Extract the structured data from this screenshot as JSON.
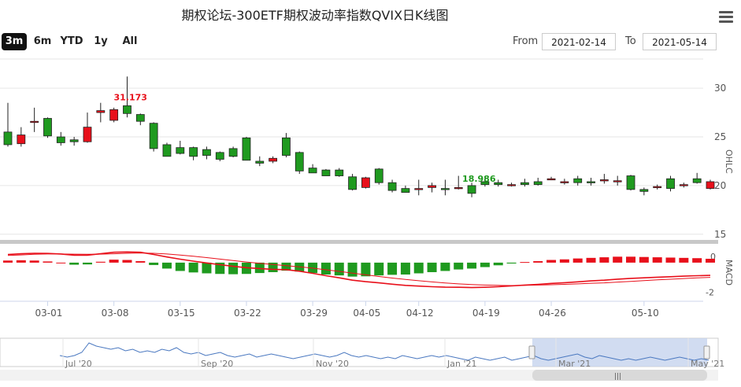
{
  "title": "期权论坛-300ETF期权波动率指数QVIX日K线图",
  "range_buttons": [
    {
      "label": "3m",
      "active": true
    },
    {
      "label": "6m",
      "active": false
    },
    {
      "label": "YTD",
      "active": false
    },
    {
      "label": "1y",
      "active": false
    },
    {
      "label": "All",
      "active": false
    }
  ],
  "date_range": {
    "from_label": "From",
    "from_value": "2021-02-14",
    "to_label": "To",
    "to_value": "2021-05-14"
  },
  "colors": {
    "up": "#e8101b",
    "down": "#1f9a1f",
    "navigator_fill": "#c6d3ee",
    "navigator_line": "#4a78c0",
    "grid": "#e6e6e6"
  },
  "chart_data": [
    {
      "type": "candlestick",
      "axis_title": "OHLC",
      "y_ticks": [
        "30",
        "25",
        "20",
        "15"
      ],
      "x_ticks": [
        "03-01",
        "03-08",
        "03-15",
        "03-22",
        "03-29",
        "04-05",
        "04-12",
        "04-19",
        "04-26",
        "05-10"
      ],
      "annotations": {
        "max_label": "31.173",
        "min_label": "18.986"
      },
      "ohlc": [
        [
          25.5,
          28.5,
          24.0,
          24.2
        ],
        [
          24.3,
          26.0,
          24.0,
          25.2
        ],
        [
          26.6,
          28.0,
          25.5,
          26.6
        ],
        [
          26.9,
          27.0,
          24.9,
          25.1
        ],
        [
          25.0,
          25.5,
          24.1,
          24.4
        ],
        [
          24.7,
          25.0,
          24.1,
          24.5
        ],
        [
          24.5,
          27.5,
          24.4,
          26.0
        ],
        [
          27.5,
          28.5,
          26.5,
          27.7
        ],
        [
          26.7,
          28.0,
          26.5,
          27.8
        ],
        [
          28.2,
          31.2,
          27.0,
          27.4
        ],
        [
          27.3,
          27.4,
          26.2,
          26.6
        ],
        [
          26.4,
          26.5,
          23.5,
          23.8
        ],
        [
          24.2,
          24.4,
          23.0,
          23.0
        ],
        [
          23.9,
          24.6,
          23.2,
          23.3
        ],
        [
          23.9,
          24.0,
          22.6,
          23.0
        ],
        [
          23.7,
          24.0,
          22.7,
          23.1
        ],
        [
          23.4,
          23.5,
          22.5,
          22.7
        ],
        [
          23.8,
          24.0,
          22.9,
          23.0
        ],
        [
          24.9,
          25.0,
          22.7,
          22.6
        ],
        [
          22.5,
          23.0,
          22.0,
          22.3
        ],
        [
          22.5,
          23.0,
          22.3,
          22.8
        ],
        [
          24.9,
          25.4,
          22.9,
          23.1
        ],
        [
          23.4,
          23.5,
          21.2,
          21.5
        ],
        [
          21.8,
          22.2,
          21.3,
          21.3
        ],
        [
          21.6,
          21.7,
          21.0,
          21.0
        ],
        [
          21.6,
          21.8,
          20.9,
          21.0
        ],
        [
          20.9,
          21.2,
          19.5,
          19.6
        ],
        [
          19.8,
          20.9,
          19.7,
          20.8
        ],
        [
          21.7,
          21.8,
          20.1,
          20.3
        ],
        [
          20.3,
          20.6,
          19.3,
          19.5
        ],
        [
          19.7,
          20.0,
          19.3,
          19.3
        ],
        [
          19.6,
          20.6,
          19.0,
          19.7
        ],
        [
          19.8,
          20.3,
          19.3,
          20.0
        ],
        [
          19.7,
          20.6,
          19.0,
          19.6
        ],
        [
          19.8,
          21.0,
          19.6,
          19.8
        ],
        [
          20.0,
          20.3,
          18.8,
          19.2
        ],
        [
          20.4,
          20.8,
          19.9,
          20.1
        ],
        [
          20.3,
          20.6,
          19.9,
          20.1
        ],
        [
          20.0,
          20.3,
          19.9,
          20.1
        ],
        [
          20.3,
          20.7,
          19.9,
          20.1
        ],
        [
          20.4,
          20.8,
          20.0,
          20.1
        ],
        [
          20.7,
          20.9,
          20.6,
          20.7
        ],
        [
          20.4,
          20.7,
          20.1,
          20.4
        ],
        [
          20.7,
          21.0,
          20.0,
          20.3
        ],
        [
          20.4,
          20.8,
          20.0,
          20.3
        ],
        [
          20.5,
          21.2,
          20.2,
          20.6
        ],
        [
          20.5,
          21.0,
          20.0,
          20.5
        ],
        [
          21.0,
          21.1,
          19.5,
          19.6
        ],
        [
          19.6,
          19.8,
          19.0,
          19.4
        ],
        [
          19.9,
          20.1,
          19.6,
          19.9
        ],
        [
          20.7,
          21.0,
          19.4,
          19.7
        ],
        [
          20.0,
          20.3,
          19.8,
          20.1
        ],
        [
          20.7,
          21.3,
          20.2,
          20.3
        ],
        [
          19.7,
          20.6,
          19.6,
          20.4
        ]
      ]
    },
    {
      "type": "macd",
      "axis_title": "MACD",
      "y_ticks": [
        "0",
        "-2"
      ],
      "ylim": [
        -2.6,
        1.0
      ],
      "dif": [
        0.55,
        0.6,
        0.63,
        0.62,
        0.58,
        0.5,
        0.5,
        0.6,
        0.7,
        0.72,
        0.7,
        0.55,
        0.38,
        0.23,
        0.1,
        -0.02,
        -0.14,
        -0.25,
        -0.34,
        -0.4,
        -0.45,
        -0.47,
        -0.58,
        -0.72,
        -0.88,
        -1.02,
        -1.18,
        -1.28,
        -1.36,
        -1.45,
        -1.53,
        -1.58,
        -1.62,
        -1.65,
        -1.66,
        -1.68,
        -1.66,
        -1.62,
        -1.57,
        -1.51,
        -1.46,
        -1.4,
        -1.35,
        -1.29,
        -1.23,
        -1.18,
        -1.11,
        -1.06,
        -1.02,
        -0.98,
        -0.95,
        -0.91,
        -0.88,
        -0.86
      ],
      "dea": [
        0.48,
        0.52,
        0.56,
        0.58,
        0.58,
        0.57,
        0.56,
        0.57,
        0.6,
        0.63,
        0.65,
        0.63,
        0.58,
        0.51,
        0.43,
        0.34,
        0.24,
        0.14,
        0.04,
        -0.05,
        -0.13,
        -0.2,
        -0.28,
        -0.37,
        -0.48,
        -0.59,
        -0.71,
        -0.82,
        -0.93,
        -1.04,
        -1.13,
        -1.22,
        -1.3,
        -1.37,
        -1.43,
        -1.48,
        -1.51,
        -1.53,
        -1.54,
        -1.53,
        -1.51,
        -1.49,
        -1.46,
        -1.43,
        -1.39,
        -1.36,
        -1.31,
        -1.26,
        -1.21,
        -1.16,
        -1.12,
        -1.07,
        -1.03,
        -0.99
      ],
      "hist": [
        0.14,
        0.16,
        0.14,
        0.08,
        0.0,
        -0.14,
        -0.12,
        0.06,
        0.2,
        0.18,
        0.1,
        -0.16,
        -0.4,
        -0.56,
        -0.66,
        -0.72,
        -0.76,
        -0.78,
        -0.76,
        -0.7,
        -0.64,
        -0.54,
        -0.6,
        -0.7,
        -0.8,
        -0.86,
        -0.94,
        -0.92,
        -0.86,
        -0.82,
        -0.8,
        -0.72,
        -0.64,
        -0.56,
        -0.46,
        -0.4,
        -0.3,
        -0.18,
        -0.06,
        0.04,
        0.1,
        0.18,
        0.22,
        0.28,
        0.32,
        0.36,
        0.4,
        0.4,
        0.38,
        0.36,
        0.34,
        0.32,
        0.3,
        0.26
      ]
    },
    {
      "type": "navigator",
      "x_ticks": [
        "Jul '20",
        "Sep '20",
        "Nov '20",
        "Jan '21",
        "Mar '21",
        "May '21"
      ],
      "selected_range": [
        "2021-02-14",
        "2021-05-14"
      ],
      "values": [
        22,
        21,
        22,
        24,
        30,
        28,
        27,
        26,
        27,
        25,
        26,
        24,
        25,
        24,
        26,
        25,
        27,
        24,
        23,
        24,
        22,
        23,
        24,
        22,
        21,
        22,
        23,
        21,
        22,
        23,
        22,
        21,
        20,
        21,
        22,
        23,
        22,
        21,
        22,
        24,
        22,
        21,
        22,
        21,
        20,
        21,
        20,
        22,
        21,
        20,
        21,
        22,
        21,
        22,
        21,
        20,
        19,
        21,
        20,
        19,
        20,
        21,
        19,
        20,
        21,
        22,
        20,
        19,
        20,
        21,
        22,
        23,
        21,
        20,
        22,
        21,
        20,
        19,
        20,
        19,
        20,
        21,
        20,
        19,
        20,
        21,
        20,
        19,
        20,
        19
      ]
    }
  ]
}
